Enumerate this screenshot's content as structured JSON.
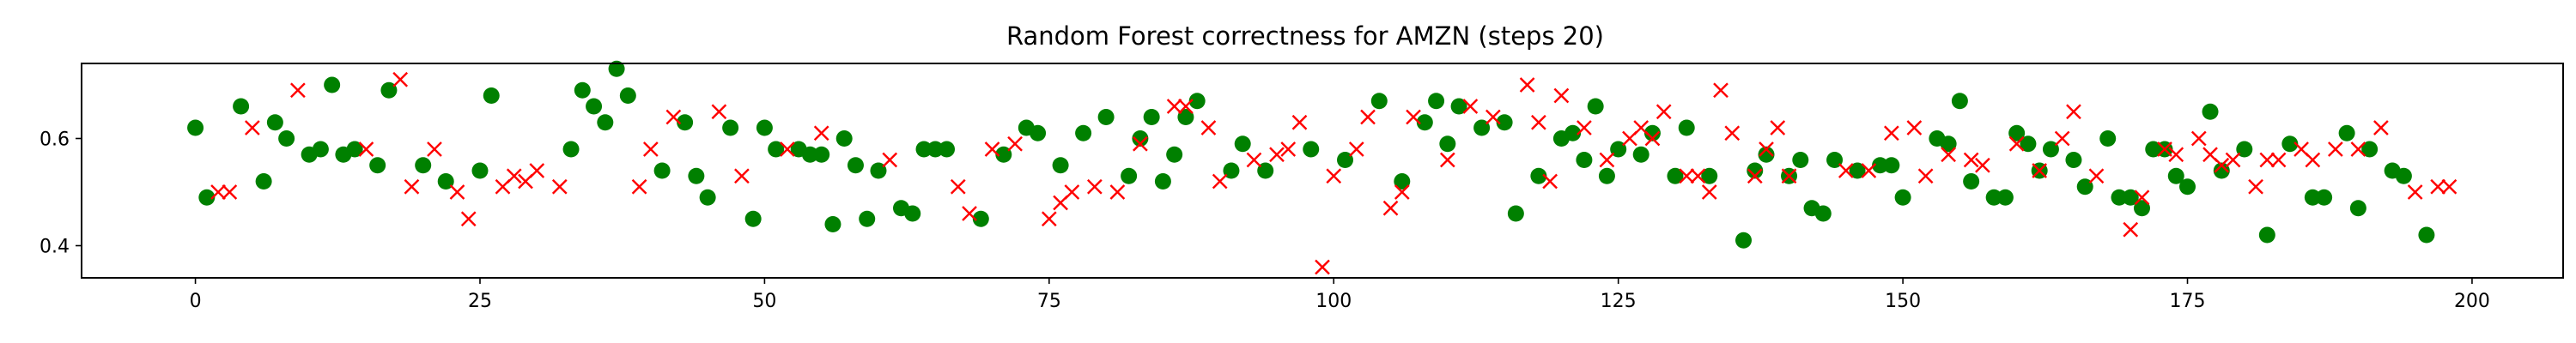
{
  "chart_data": {
    "type": "scatter",
    "title": "Random Forest correctness for AMZN (steps 20)",
    "xlabel": "",
    "ylabel": "",
    "xlim": [
      -10,
      208
    ],
    "ylim": [
      0.34,
      0.74
    ],
    "xticks": [
      0,
      25,
      50,
      75,
      100,
      125,
      150,
      175,
      200
    ],
    "yticks": [
      0.4,
      0.6
    ],
    "grid": false,
    "legend": "none",
    "colors": {
      "correct": "#008000",
      "incorrect": "#ff0000"
    },
    "series": [
      {
        "marker": "circle",
        "color": "#008000",
        "x": [
          0,
          1,
          4,
          6,
          7,
          8,
          10,
          11,
          12,
          13,
          14,
          16,
          17,
          20,
          22,
          25,
          26,
          33,
          34,
          35,
          36,
          37,
          38,
          41,
          43,
          44,
          45,
          47,
          49,
          50,
          51,
          53,
          54,
          55,
          56,
          57,
          58,
          59,
          60,
          62,
          63,
          64,
          65,
          66,
          69,
          71,
          73,
          74,
          76,
          78,
          80,
          82,
          83,
          84,
          85,
          86,
          87,
          88,
          91,
          92,
          94,
          98,
          101,
          104,
          106,
          108,
          109,
          110,
          111,
          113,
          115,
          116,
          118,
          120,
          121,
          122,
          123,
          124,
          125,
          127,
          128,
          130,
          131,
          133,
          136,
          137,
          138,
          140,
          141,
          142,
          143,
          144,
          146,
          148,
          149,
          150,
          153,
          154,
          155,
          156,
          158,
          159,
          160,
          161,
          162,
          163,
          165,
          166,
          168,
          169,
          170,
          171,
          172,
          173,
          174,
          175,
          177,
          178,
          180,
          182,
          184,
          186,
          187,
          189,
          190,
          191,
          193,
          194,
          196
        ],
        "y": [
          0.62,
          0.49,
          0.66,
          0.52,
          0.63,
          0.6,
          0.57,
          0.58,
          0.7,
          0.57,
          0.58,
          0.55,
          0.69,
          0.55,
          0.52,
          0.54,
          0.68,
          0.58,
          0.69,
          0.66,
          0.63,
          0.73,
          0.68,
          0.54,
          0.63,
          0.53,
          0.49,
          0.62,
          0.45,
          0.62,
          0.58,
          0.58,
          0.57,
          0.57,
          0.44,
          0.6,
          0.55,
          0.45,
          0.54,
          0.47,
          0.46,
          0.58,
          0.58,
          0.58,
          0.45,
          0.57,
          0.62,
          0.61,
          0.55,
          0.61,
          0.64,
          0.53,
          0.6,
          0.64,
          0.52,
          0.57,
          0.64,
          0.67,
          0.54,
          0.59,
          0.54,
          0.58,
          0.56,
          0.67,
          0.52,
          0.63,
          0.67,
          0.59,
          0.66,
          0.62,
          0.63,
          0.46,
          0.53,
          0.6,
          0.61,
          0.56,
          0.66,
          0.53,
          0.58,
          0.57,
          0.61,
          0.53,
          0.62,
          0.53,
          0.41,
          0.54,
          0.57,
          0.53,
          0.56,
          0.47,
          0.46,
          0.56,
          0.54,
          0.55,
          0.55,
          0.49,
          0.6,
          0.59,
          0.67,
          0.52,
          0.49,
          0.49,
          0.61,
          0.59,
          0.54,
          0.58,
          0.56,
          0.51,
          0.6,
          0.49,
          0.49,
          0.47,
          0.58,
          0.58,
          0.53,
          0.51,
          0.65,
          0.54,
          0.58,
          0.42,
          0.59,
          0.49,
          0.49,
          0.61,
          0.47,
          0.58,
          0.54,
          0.53,
          0.42
        ]
      },
      {
        "marker": "x",
        "color": "#ff0000",
        "x": [
          2,
          3,
          5,
          9,
          15,
          18,
          19,
          21,
          23,
          24,
          27,
          28,
          29,
          30,
          32,
          39,
          40,
          42,
          46,
          48,
          52,
          55,
          61,
          67,
          68,
          70,
          72,
          75,
          76,
          77,
          79,
          81,
          83,
          86,
          87,
          89,
          90,
          93,
          95,
          96,
          97,
          99,
          100,
          102,
          103,
          105,
          106,
          107,
          110,
          112,
          114,
          117,
          118,
          119,
          120,
          122,
          124,
          126,
          127,
          128,
          129,
          131,
          132,
          133,
          134,
          135,
          137,
          138,
          139,
          140,
          145,
          147,
          149,
          151,
          152,
          154,
          156,
          157,
          160,
          162,
          164,
          165,
          167,
          170,
          171,
          173,
          174,
          176,
          177,
          178,
          179,
          181,
          182,
          183,
          185,
          186,
          188,
          190,
          192,
          195,
          197,
          198
        ],
        "y": [
          0.5,
          0.5,
          0.62,
          0.69,
          0.58,
          0.71,
          0.51,
          0.58,
          0.5,
          0.45,
          0.51,
          0.53,
          0.52,
          0.54,
          0.51,
          0.51,
          0.58,
          0.64,
          0.65,
          0.53,
          0.58,
          0.61,
          0.56,
          0.51,
          0.46,
          0.58,
          0.59,
          0.45,
          0.48,
          0.5,
          0.51,
          0.5,
          0.59,
          0.66,
          0.66,
          0.62,
          0.52,
          0.56,
          0.57,
          0.58,
          0.63,
          0.36,
          0.53,
          0.58,
          0.64,
          0.47,
          0.5,
          0.64,
          0.56,
          0.66,
          0.64,
          0.7,
          0.63,
          0.52,
          0.68,
          0.62,
          0.56,
          0.6,
          0.62,
          0.6,
          0.65,
          0.53,
          0.53,
          0.5,
          0.69,
          0.61,
          0.53,
          0.58,
          0.62,
          0.53,
          0.54,
          0.54,
          0.61,
          0.62,
          0.53,
          0.57,
          0.56,
          0.55,
          0.59,
          0.54,
          0.6,
          0.65,
          0.53,
          0.43,
          0.49,
          0.58,
          0.57,
          0.6,
          0.57,
          0.55,
          0.56,
          0.51,
          0.56,
          0.56,
          0.58,
          0.56,
          0.58,
          0.58,
          0.62,
          0.5,
          0.51,
          0.51
        ]
      }
    ]
  }
}
